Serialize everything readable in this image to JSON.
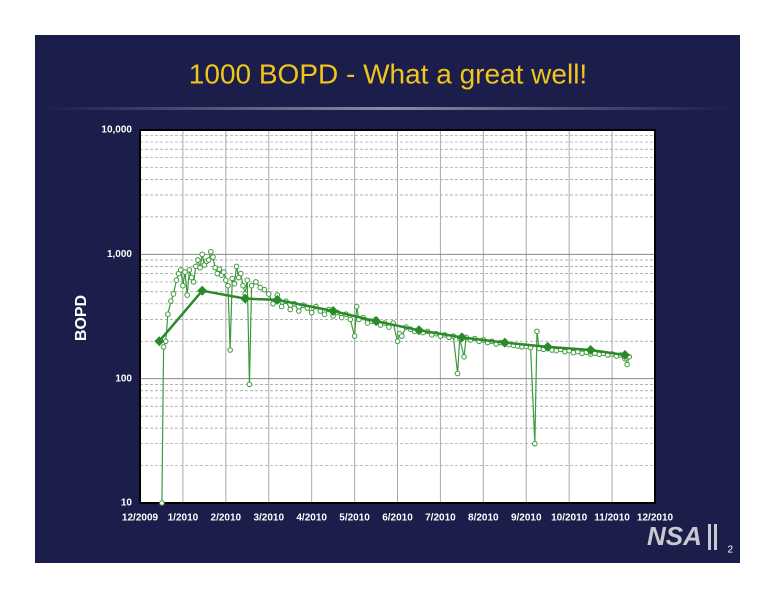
{
  "chart_data": {
    "type": "line",
    "title": "1000 BOPD - What a great well!",
    "ylabel": "BOPD",
    "log_scale": true,
    "grid": true,
    "ylim": [
      10,
      10000
    ],
    "yticks": [
      10,
      100,
      {
        "value": 1000,
        "label": "1,000"
      },
      {
        "value": 10000,
        "label": "10,000"
      }
    ],
    "minor_yticks": [
      20,
      30,
      40,
      50,
      60,
      70,
      80,
      90,
      200,
      300,
      400,
      500,
      600,
      700,
      800,
      900,
      2000,
      3000,
      4000,
      5000,
      6000,
      7000,
      8000,
      9000
    ],
    "xlim": [
      0,
      12
    ],
    "xticks": [
      {
        "value": 0,
        "label": "12/2009"
      },
      {
        "value": 1,
        "label": "1/2010"
      },
      {
        "value": 2,
        "label": "2/2010"
      },
      {
        "value": 3,
        "label": "3/2010"
      },
      {
        "value": 4,
        "label": "4/2010"
      },
      {
        "value": 5,
        "label": "5/2010"
      },
      {
        "value": 6,
        "label": "6/2010"
      },
      {
        "value": 7,
        "label": "7/2010"
      },
      {
        "value": 8,
        "label": "8/2010"
      },
      {
        "value": 9,
        "label": "9/2010"
      },
      {
        "value": 10,
        "label": "10/2010"
      },
      {
        "value": 11,
        "label": "11/2010"
      },
      {
        "value": 12,
        "label": "12/2010"
      }
    ],
    "series": [
      {
        "color": "#3c9a3c",
        "marker": "circle",
        "x": [
          0.51,
          0.55,
          0.6,
          0.65,
          0.72,
          0.78,
          0.85,
          0.9,
          0.95,
          1.0,
          1.05,
          1.1,
          1.15,
          1.2,
          1.25,
          1.3,
          1.35,
          1.4,
          1.45,
          1.5,
          1.55,
          1.6,
          1.65,
          1.7,
          1.75,
          1.8,
          1.85,
          1.9,
          1.95,
          2.0,
          2.05,
          2.1,
          2.15,
          2.2,
          2.25,
          2.3,
          2.35,
          2.4,
          2.45,
          2.5,
          2.55,
          2.6,
          2.7,
          2.8,
          2.9,
          3.0,
          3.1,
          3.2,
          3.3,
          3.4,
          3.5,
          3.6,
          3.7,
          3.8,
          3.9,
          4.0,
          4.1,
          4.2,
          4.3,
          4.4,
          4.5,
          4.6,
          4.7,
          4.8,
          4.9,
          5.0,
          5.05,
          5.1,
          5.2,
          5.3,
          5.4,
          5.5,
          5.6,
          5.7,
          5.8,
          5.9,
          6.0,
          6.05,
          6.1,
          6.2,
          6.3,
          6.4,
          6.5,
          6.6,
          6.7,
          6.8,
          6.9,
          7.0,
          7.1,
          7.2,
          7.3,
          7.4,
          7.45,
          7.55,
          7.6,
          7.7,
          7.8,
          7.9,
          8.0,
          8.1,
          8.2,
          8.3,
          8.4,
          8.5,
          8.6,
          8.7,
          8.8,
          8.9,
          9.0,
          9.1,
          9.2,
          9.25,
          9.3,
          9.4,
          9.5,
          9.6,
          9.7,
          9.8,
          9.9,
          10.0,
          10.1,
          10.2,
          10.3,
          10.4,
          10.5,
          10.6,
          10.7,
          10.8,
          10.9,
          11.0,
          11.1,
          11.2,
          11.3,
          11.35,
          11.4
        ],
        "values": [
          10,
          180,
          200,
          330,
          420,
          480,
          620,
          700,
          750,
          560,
          720,
          470,
          750,
          650,
          600,
          800,
          900,
          780,
          1000,
          820,
          880,
          900,
          1050,
          950,
          780,
          700,
          760,
          680,
          720,
          620,
          560,
          170,
          640,
          580,
          800,
          650,
          700,
          560,
          480,
          620,
          90,
          560,
          600,
          540,
          520,
          480,
          400,
          470,
          380,
          420,
          360,
          400,
          350,
          390,
          370,
          340,
          380,
          350,
          330,
          360,
          320,
          340,
          310,
          330,
          300,
          220,
          380,
          300,
          310,
          280,
          290,
          300,
          270,
          280,
          260,
          280,
          200,
          230,
          220,
          260,
          250,
          240,
          245,
          235,
          240,
          225,
          230,
          220,
          225,
          215,
          220,
          110,
          210,
          150,
          215,
          205,
          210,
          200,
          205,
          195,
          200,
          190,
          195,
          190,
          188,
          185,
          183,
          180,
          182,
          178,
          30,
          240,
          175,
          172,
          178,
          170,
          168,
          172,
          165,
          168,
          162,
          165,
          160,
          163,
          158,
          160,
          157,
          160,
          155,
          158,
          152,
          155,
          145,
          130,
          150
        ]
      },
      {
        "color": "#2a8a2a",
        "marker": "diamond",
        "x": [
          0.45,
          1.45,
          2.45,
          3.2,
          4.5,
          5.5,
          6.5,
          7.5,
          8.5,
          9.5,
          10.5,
          11.3
        ],
        "values": [
          200,
          510,
          440,
          430,
          350,
          290,
          245,
          215,
          195,
          180,
          170,
          155
        ]
      }
    ],
    "logo": "NSA",
    "page_number": "2"
  }
}
